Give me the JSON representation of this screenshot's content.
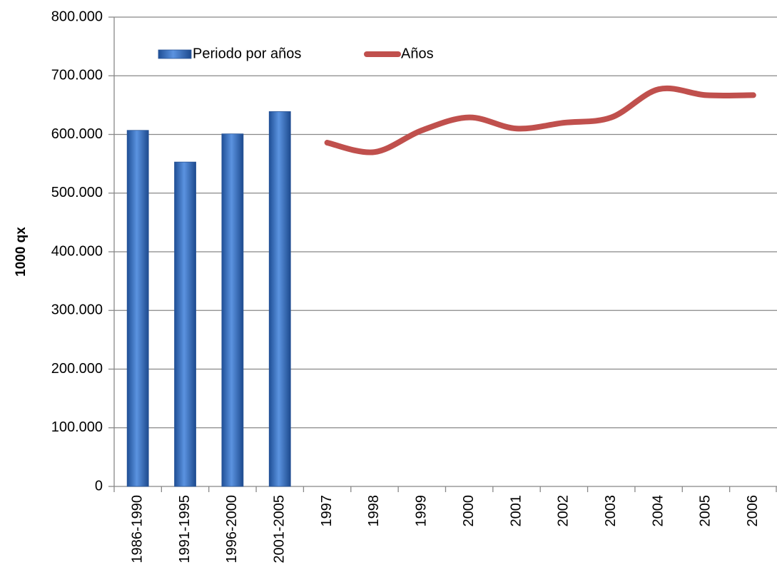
{
  "chart_data": {
    "type": "bar_line",
    "ylabel": "1000 qx",
    "categories": [
      "1986-1990",
      "1991-1995",
      "1996-2000",
      "2001-2005",
      "1997",
      "1998",
      "1999",
      "2000",
      "2001",
      "2002",
      "2003",
      "2004",
      "2005",
      "2006"
    ],
    "series": [
      {
        "name": "Periodo por años",
        "type": "bar",
        "color": "#3d74c6",
        "values": [
          607000,
          553000,
          601000,
          639000,
          null,
          null,
          null,
          null,
          null,
          null,
          null,
          null,
          null,
          null
        ]
      },
      {
        "name": "Años",
        "type": "line",
        "color": "#c0504d",
        "values": [
          null,
          null,
          null,
          null,
          586000,
          570000,
          607000,
          629000,
          610000,
          620000,
          629000,
          677000,
          667000,
          667000
        ]
      }
    ],
    "ylim": [
      0,
      800000
    ],
    "yticks": [
      0,
      {
        "value": 100000,
        "label": "100.000"
      },
      {
        "value": 200000,
        "label": "200.000"
      },
      {
        "value": 300000,
        "label": "300.000"
      },
      {
        "value": 400000,
        "label": "400.000"
      },
      {
        "value": 500000,
        "label": "500.000"
      },
      {
        "value": 600000,
        "label": "600.000"
      },
      {
        "value": 700000,
        "label": "700.000"
      },
      {
        "value": 800000,
        "label": "800.000"
      }
    ],
    "grid": true,
    "legend": "top-left"
  }
}
